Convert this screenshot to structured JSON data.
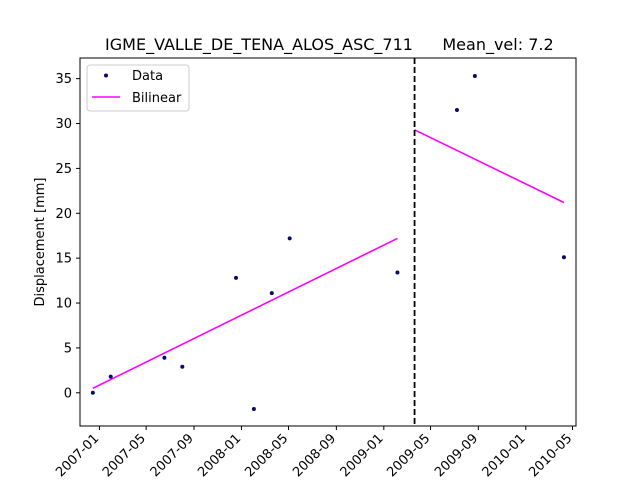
{
  "chart_data": {
    "type": "scatter",
    "title": "IGME_VALLE_DE_TENA_ALOS_ASC_711",
    "subtitle": "Mean_vel: 7.2",
    "xlabel": "",
    "ylabel": "Displacement [mm]",
    "x_axis_type": "date",
    "xlim": [
      "2006-11-12",
      "2010-05-10"
    ],
    "ylim": [
      -3.7,
      37.3
    ],
    "x_ticks": [
      "2007-01",
      "2007-05",
      "2007-09",
      "2008-01",
      "2008-05",
      "2008-09",
      "2009-01",
      "2009-05",
      "2009-09",
      "2010-01",
      "2010-05"
    ],
    "y_ticks": [
      0,
      5,
      10,
      15,
      20,
      25,
      30,
      35
    ],
    "grid": false,
    "legend": {
      "position": "upper-left",
      "entries": [
        "Data",
        "Bilinear"
      ]
    },
    "series": [
      {
        "name": "Data",
        "style": "points",
        "color": "#0a0a6e",
        "points": [
          {
            "x": "2006-12-15",
            "y": 0.0
          },
          {
            "x": "2007-01-30",
            "y": 1.8
          },
          {
            "x": "2007-06-17",
            "y": 3.9
          },
          {
            "x": "2007-08-02",
            "y": 2.9
          },
          {
            "x": "2007-12-18",
            "y": 12.8
          },
          {
            "x": "2008-02-02",
            "y": -1.8
          },
          {
            "x": "2008-03-19",
            "y": 11.1
          },
          {
            "x": "2008-05-04",
            "y": 17.2
          },
          {
            "x": "2009-02-05",
            "y": 13.4
          },
          {
            "x": "2009-07-08",
            "y": 31.5
          },
          {
            "x": "2009-08-23",
            "y": 35.3
          },
          {
            "x": "2010-04-09",
            "y": 15.1
          }
        ]
      },
      {
        "name": "Bilinear",
        "style": "line",
        "color": "#ff00ff",
        "segments": [
          [
            {
              "x": "2006-12-15",
              "y": 0.5
            },
            {
              "x": "2009-02-05",
              "y": 17.2
            }
          ],
          [
            {
              "x": "2009-03-21",
              "y": 29.3
            },
            {
              "x": "2010-04-09",
              "y": 21.2
            }
          ]
        ]
      }
    ],
    "breakpoint": {
      "x": "2009-03-21",
      "style": "dashed",
      "color": "#000000"
    }
  }
}
